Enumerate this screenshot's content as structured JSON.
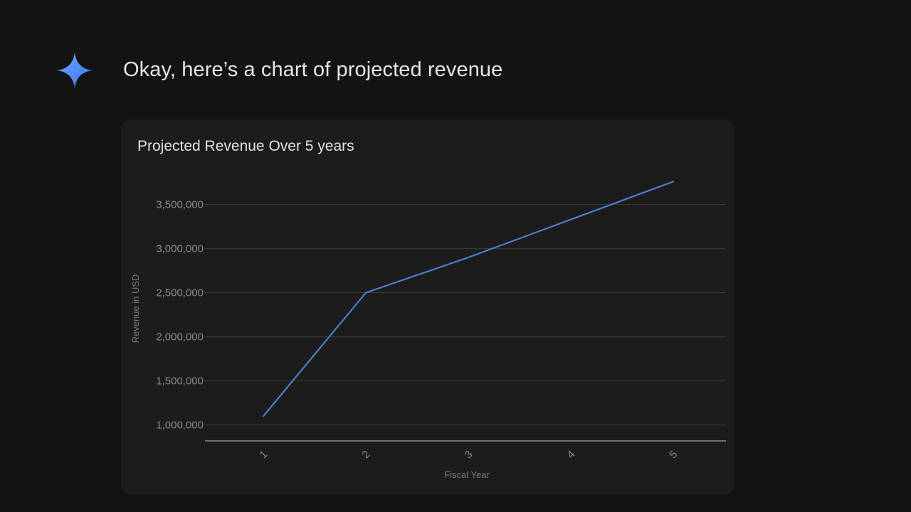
{
  "response": {
    "icon": "gemini-spark-icon",
    "text": "Okay, here’s a chart of projected revenue"
  },
  "colors": {
    "accent": "#4f8df5",
    "series": "#4a7fc8"
  },
  "chart_data": {
    "type": "line",
    "title": "Projected Revenue Over 5 years",
    "xlabel": "Fiscal Year",
    "ylabel": "Revenue in USD",
    "categories": [
      "1",
      "2",
      "3",
      "4",
      "5"
    ],
    "series": [
      {
        "values": [
          1100000,
          2500000,
          2900000,
          3330000,
          3760000
        ]
      }
    ],
    "yticks": [
      1000000,
      1500000,
      2000000,
      2500000,
      3000000,
      3500000
    ],
    "ytick_labels": [
      "1,000,000",
      "1,500,000",
      "2,000,000",
      "2,500,000",
      "3,000,000",
      "3,500,000"
    ],
    "ylim": [
      820000,
      3900000
    ],
    "grid": true,
    "legend": "none"
  }
}
